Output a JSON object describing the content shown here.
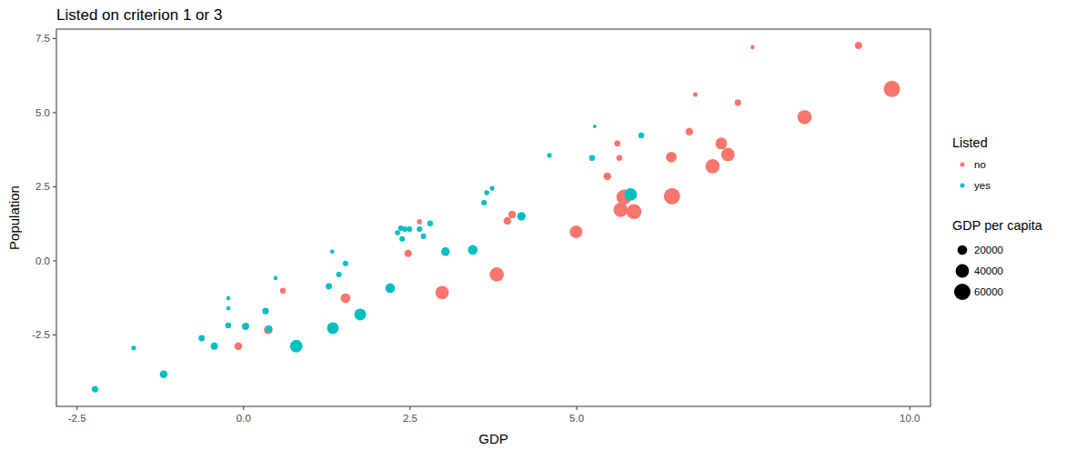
{
  "chart_data": {
    "type": "scatter",
    "title": "Listed on criterion 1 or 3",
    "x_label": "GDP",
    "y_label": "Population",
    "legend_title": "Listed",
    "size_title": "GDP per capita",
    "size_legend": [
      20000,
      40000,
      60000
    ],
    "xlim": [
      -2.81,
      10.31
    ],
    "ylim": [
      -4.91,
      7.82
    ],
    "xticks": [
      {
        "value": -2.5,
        "label": "-2.5"
      },
      {
        "value": 0,
        "label": "0.0"
      },
      {
        "value": 2.5,
        "label": "2.5"
      },
      {
        "value": 5,
        "label": "5.0"
      },
      {
        "value": 10,
        "label": "10.0"
      }
    ],
    "yticks": [
      {
        "value": -2.5,
        "label": "-2.5"
      },
      {
        "value": 0,
        "label": "0.0"
      },
      {
        "value": 2.5,
        "label": "2.5"
      },
      {
        "value": 5,
        "label": "5.0"
      },
      {
        "value": 7.5,
        "label": "7.5"
      }
    ],
    "grid": false,
    "legend": "right",
    "series": [
      {
        "name": "no",
        "color": "#F8766D",
        "marker": "circle",
        "x": [
          7.64,
          9.23,
          9.73,
          8.42,
          7.42,
          6.78,
          6.69,
          7.17,
          7.27,
          7.04,
          6.42,
          5.61,
          5.64,
          5.46,
          5.71,
          5.66,
          5.86,
          6.43,
          4.99,
          3.96,
          4.03,
          2.64,
          2.47,
          3.8,
          2.98,
          1.53,
          0.59,
          0.37,
          -0.08
        ],
        "values": [
          7.21,
          7.27,
          5.8,
          4.85,
          5.34,
          5.61,
          4.36,
          3.96,
          3.59,
          3.19,
          3.5,
          3.96,
          3.47,
          2.85,
          2.15,
          1.72,
          1.66,
          2.18,
          0.98,
          1.35,
          1.56,
          1.32,
          0.25,
          -0.46,
          -1.07,
          -1.26,
          -1.01,
          -2.33,
          -2.88
        ],
        "size": [
          2000,
          10000,
          60000,
          45000,
          8000,
          3000,
          12000,
          30000,
          40000,
          45000,
          25000,
          7000,
          6000,
          12000,
          50000,
          45000,
          50000,
          60000,
          35000,
          12000,
          12000,
          4000,
          10000,
          45000,
          40000,
          20000,
          6000,
          15000,
          12000
        ]
      },
      {
        "name": "yes",
        "color": "#00BFC4",
        "marker": "circle",
        "x": [
          -2.23,
          -1.65,
          -1.2,
          -0.63,
          -0.44,
          -0.23,
          -0.23,
          -0.23,
          0.03,
          0.33,
          0.38,
          0.48,
          0.79,
          1.28,
          1.33,
          1.34,
          1.43,
          1.53,
          1.75,
          2.2,
          2.31,
          2.36,
          2.42,
          2.49,
          2.38,
          2.64,
          2.7,
          2.8,
          3.03,
          3.44,
          3.61,
          3.65,
          3.73,
          4.17,
          4.59,
          5.23,
          5.27,
          5.97,
          5.81
        ],
        "values": [
          -4.33,
          -2.94,
          -3.83,
          -2.61,
          -2.88,
          -1.26,
          -1.6,
          -2.18,
          -2.21,
          -1.69,
          -2.3,
          -0.58,
          -2.88,
          -0.86,
          0.31,
          -2.27,
          -0.46,
          -0.09,
          -1.81,
          -0.92,
          0.95,
          1.1,
          1.07,
          1.07,
          0.74,
          1.07,
          0.83,
          1.26,
          0.31,
          0.37,
          1.96,
          2.3,
          2.45,
          1.5,
          3.56,
          3.47,
          4.54,
          4.23,
          2.24
        ],
        "size": [
          8000,
          3000,
          12000,
          7000,
          10000,
          2000,
          2000,
          6000,
          10000,
          8000,
          9000,
          2000,
          35000,
          7000,
          2000,
          30000,
          5000,
          5000,
          30000,
          20000,
          4000,
          5000,
          5000,
          5000,
          5000,
          5000,
          5000,
          6000,
          15000,
          20000,
          5000,
          4000,
          3000,
          15000,
          3000,
          6000,
          1000,
          6000,
          35000
        ]
      }
    ]
  }
}
